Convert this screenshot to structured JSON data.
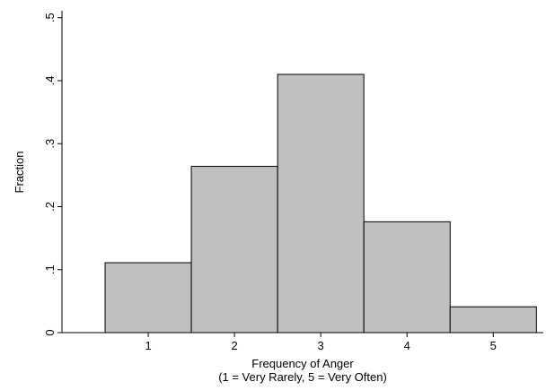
{
  "chart_data": {
    "type": "histogram",
    "x_label": [
      "Frequency of Anger",
      "(1 = Very Rarely, 5 = Very Often)"
    ],
    "y_label": "Fraction",
    "bins": [
      0.5,
      1.5,
      2.5,
      3.5,
      4.5,
      5.5
    ],
    "values": [
      0.111,
      0.264,
      0.41,
      0.176,
      0.041
    ],
    "color": "#c0c0c0",
    "xlim": [
      0,
      5.58
    ],
    "xticks": [
      1,
      2,
      3,
      4,
      5
    ],
    "ylim": [
      0,
      0.511
    ],
    "yticks": [
      0,
      {
        "value": 0.1,
        "label": ".1"
      },
      {
        "value": 0.2,
        "label": ".2"
      },
      {
        "value": 0.3,
        "label": ".3"
      },
      {
        "value": 0.4,
        "label": ".4"
      },
      {
        "value": 0.5,
        "label": ".5"
      }
    ],
    "grid": false
  }
}
